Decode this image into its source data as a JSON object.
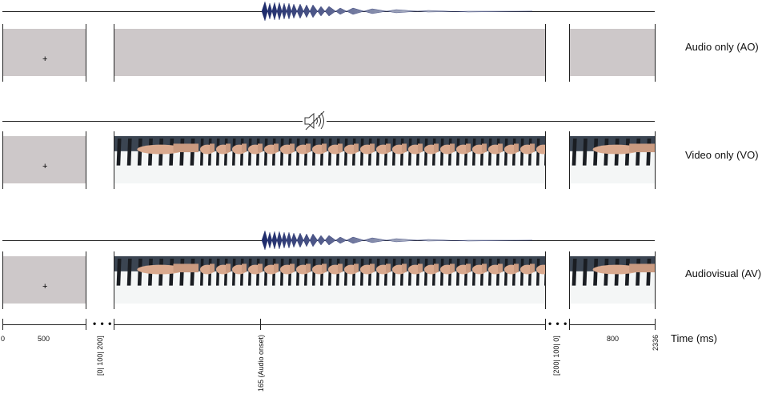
{
  "conditions": [
    {
      "label": "Audio only (AO)"
    },
    {
      "label": "Video only (VO)"
    },
    {
      "label": "Audiovisual (AV)"
    }
  ],
  "fixation_symbol": "+",
  "timeline": {
    "axis_title": "Time (ms)",
    "tick_labels": [
      "0",
      "500",
      "800",
      "2336"
    ],
    "rotated_labels": [
      "[0| 100| 200]",
      "165 (Audio onset)",
      "[200| 100| 0]"
    ],
    "ellipsis": "• • •"
  },
  "icons": {
    "muted_speaker": "speaker-muted-icon",
    "waveform": "audio-waveform-icon"
  },
  "colors": {
    "gray_screen": "#cdc8c9",
    "waveform_dark": "#1c2a6b",
    "waveform_light": "#c8ccd6"
  }
}
